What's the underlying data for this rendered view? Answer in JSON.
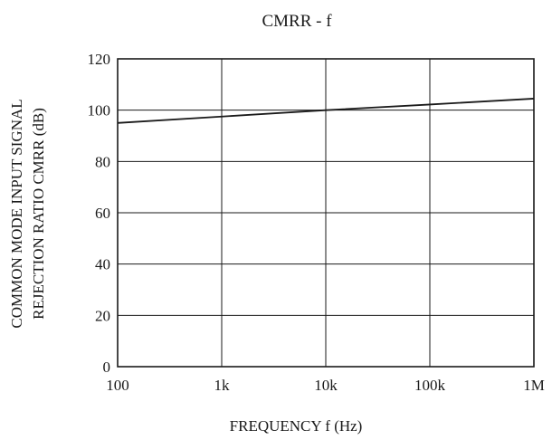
{
  "chart_data": {
    "type": "line",
    "title": "CMRR - f",
    "xlabel": "FREQUENCY f (Hz)",
    "ylabel_lines": [
      "COMMON MODE INPUT SIGNAL",
      "REJECTION RATIO CMRR (dB)"
    ],
    "x_scale": "log",
    "xlim": [
      100,
      1000000
    ],
    "ylim": [
      0,
      120
    ],
    "x_ticks": [
      {
        "value": 100,
        "label": "100"
      },
      {
        "value": 1000,
        "label": "1k"
      },
      {
        "value": 10000,
        "label": "10k"
      },
      {
        "value": 100000,
        "label": "100k"
      },
      {
        "value": 1000000,
        "label": "1M"
      }
    ],
    "y_ticks": [
      {
        "value": 0,
        "label": "0"
      },
      {
        "value": 20,
        "label": "20"
      },
      {
        "value": 40,
        "label": "40"
      },
      {
        "value": 60,
        "label": "60"
      },
      {
        "value": 80,
        "label": "80"
      },
      {
        "value": 100,
        "label": "100"
      },
      {
        "value": 120,
        "label": "120"
      }
    ],
    "grid": true,
    "series": [
      {
        "x": [
          100,
          1000,
          10000,
          100000,
          1000000
        ],
        "y": [
          95,
          97.5,
          100,
          102.2,
          104.5
        ]
      }
    ],
    "colors": {
      "line": "#1a1a1a",
      "grid": "#1a1a1a",
      "background": "#ffffff"
    }
  }
}
